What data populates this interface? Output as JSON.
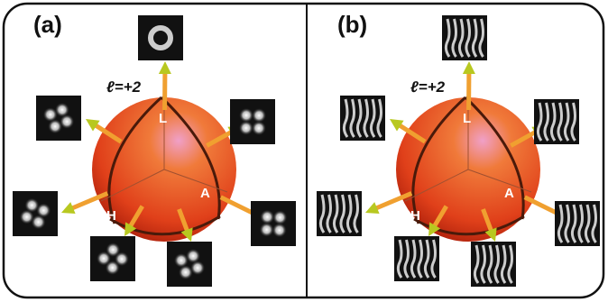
{
  "panels": [
    {
      "label": "(a)",
      "oam_label": "ℓ=+2",
      "poles": [
        "L",
        "H",
        "A"
      ]
    },
    {
      "label": "(b)",
      "oam_label": "ℓ=+2",
      "poles": [
        "L",
        "H",
        "A"
      ]
    }
  ]
}
